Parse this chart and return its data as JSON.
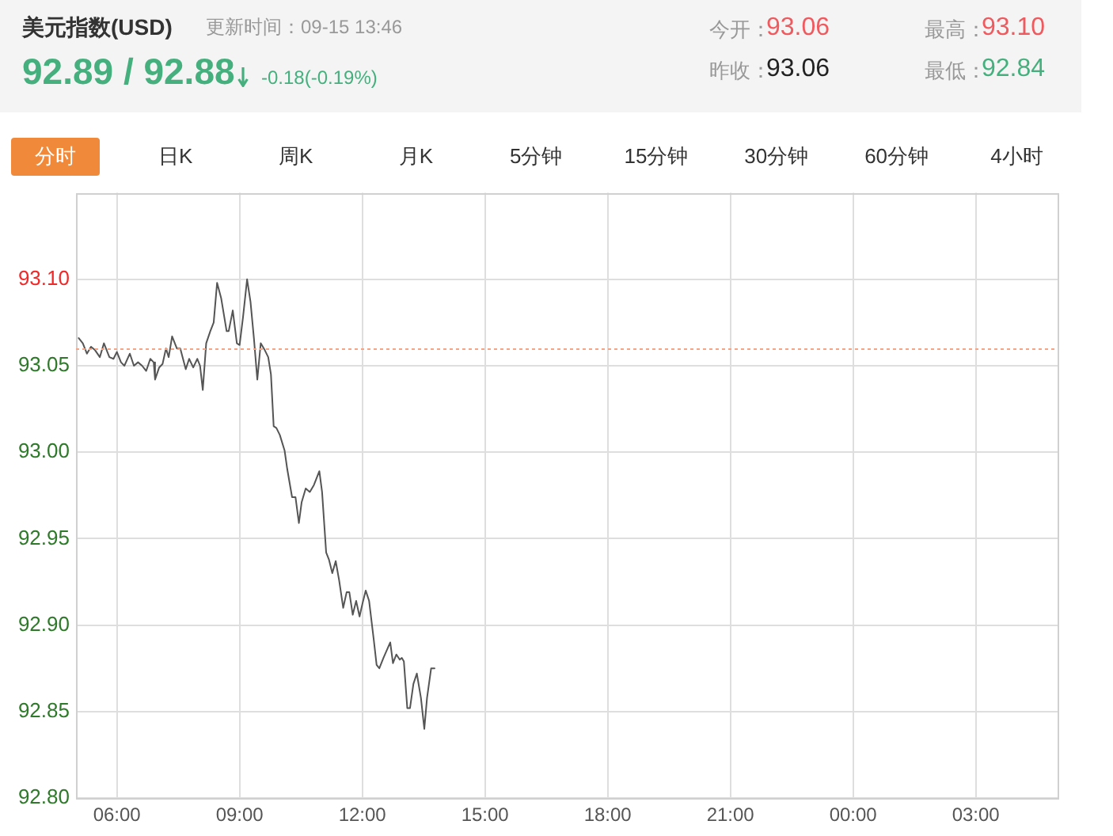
{
  "chart_data": {
    "type": "line",
    "title": "美元指数(USD)",
    "subtitle": "更新时间：09-15 13:46",
    "annotations": [
      "92.89 / 92.88",
      "-0.18(-0.19%)",
      "今开：",
      "93.06",
      "最高：",
      "93.10",
      "昨收：",
      "93.06",
      "最低：",
      "92.84",
      "分时",
      "日K",
      "周K",
      "月K",
      "5分钟",
      "15分钟",
      "30分钟",
      "60分钟",
      "4小时"
    ],
    "x": [
      "--09-15T05:04",
      "--09-15T05:10",
      "--09-15T05:16",
      "--09-15T05:22",
      "--09-15T05:28",
      "--09-15T05:35",
      "--09-15T05:41",
      "--09-15T05:49",
      "--09-15T05:55",
      "--09-15T06:00",
      "--09-15T06:06",
      "--09-15T06:11",
      "--09-15T06:19",
      "--09-15T06:25",
      "--09-15T06:31",
      "--09-15T06:37",
      "--09-15T06:43",
      "--09-15T06:49",
      "--09-15T06:54",
      "--09-15T06:56",
      "--09-15T07:02",
      "--09-15T07:07",
      "--09-15T07:12",
      "--09-15T07:16",
      "--09-15T07:21",
      "--09-15T07:28",
      "--09-15T07:33",
      "--09-15T07:41",
      "--09-15T07:46",
      "--09-15T07:52",
      "--09-15T07:58",
      "--09-15T08:02",
      "--09-15T08:06",
      "--09-15T08:11",
      "--09-15T08:17",
      "--09-15T08:22",
      "--09-15T08:27",
      "--09-15T08:33",
      "--09-15T08:41",
      "--09-15T08:44",
      "--09-15T08:50",
      "--09-15T08:56",
      "--09-15T09:00",
      "--09-15T09:05",
      "--09-15T09:11",
      "--09-15T09:16",
      "--09-15T09:21",
      "--09-15T09:26",
      "--09-15T09:31",
      "--09-15T09:37",
      "--09-15T09:42",
      "--09-15T09:46",
      "--09-15T09:50",
      "--09-15T09:54",
      "--09-15T09:59",
      "--09-15T10:06",
      "--09-15T10:10",
      "--09-15T10:17",
      "--09-15T10:22",
      "--09-15T10:27",
      "--09-15T10:31",
      "--09-15T10:37",
      "--09-15T10:43",
      "--09-15T10:49",
      "--09-15T10:57",
      "--09-15T11:01",
      "--09-15T11:07",
      "--09-15T11:11",
      "--09-15T11:16",
      "--09-15T11:21",
      "--09-15T11:26",
      "--09-15T11:32",
      "--09-15T11:37",
      "--09-15T11:41",
      "--09-15T11:46",
      "--09-15T11:51",
      "--09-15T11:56",
      "--09-15T12:00",
      "--09-15T12:05",
      "--09-15T12:10",
      "--09-15T12:17",
      "--09-15T12:21",
      "--09-15T12:25",
      "--09-15T12:31",
      "--09-15T12:41",
      "--09-15T12:45",
      "--09-15T12:50",
      "--09-15T12:55",
      "--09-15T12:58",
      "--09-15T13:01",
      "--09-15T13:06",
      "--09-15T13:10",
      "--09-15T13:15",
      "--09-15T13:20",
      "--09-15T13:26",
      "--09-15T13:31",
      "--09-15T13:35",
      "--09-15T13:41",
      "--09-15T13:46"
    ],
    "series": [
      {
        "color": "#555555",
        "values": [
          93.066,
          93.063,
          93.057,
          93.061,
          93.059,
          93.055,
          93.063,
          93.055,
          93.054,
          93.058,
          93.052,
          93.05,
          93.057,
          93.05,
          93.052,
          93.05,
          93.047,
          93.054,
          93.052,
          93.042,
          93.049,
          93.051,
          93.06,
          93.055,
          93.067,
          93.06,
          93.06,
          93.048,
          93.054,
          93.049,
          93.054,
          93.05,
          93.036,
          93.063,
          93.07,
          93.075,
          93.098,
          93.089,
          93.07,
          93.07,
          93.082,
          93.063,
          93.062,
          93.078,
          93.1,
          93.087,
          93.066,
          93.042,
          93.063,
          93.059,
          93.055,
          93.045,
          93.015,
          93.014,
          93.01,
          93.001,
          92.99,
          92.974,
          92.974,
          92.959,
          92.971,
          92.979,
          92.977,
          92.981,
          92.989,
          92.977,
          92.942,
          92.938,
          92.93,
          92.937,
          92.926,
          92.91,
          92.919,
          92.919,
          92.906,
          92.914,
          92.905,
          92.912,
          92.92,
          92.914,
          92.891,
          92.877,
          92.875,
          92.881,
          92.89,
          92.878,
          92.883,
          92.88,
          92.881,
          92.879,
          92.852,
          92.852,
          92.866,
          92.872,
          92.858,
          92.84,
          92.858,
          92.875,
          92.875
        ]
      }
    ],
    "xlim": [
      "--09-15T05:00",
      "--09-16T05:00"
    ],
    "xticks": [
      {
        "value": "--09-15T06:00",
        "label": "06:00"
      },
      {
        "value": "--09-15T09:00",
        "label": "09:00"
      },
      {
        "value": "--09-15T12:00",
        "label": "12:00"
      },
      {
        "value": "--09-15T15:00",
        "label": "15:00"
      },
      {
        "value": "--09-15T18:00",
        "label": "18:00"
      },
      {
        "value": "--09-15T21:00",
        "label": "21:00"
      },
      {
        "value": "--09-16T00:00",
        "label": "00:00"
      },
      {
        "value": "--09-16T03:00",
        "label": "03:00"
      }
    ],
    "ylim": [
      92.8,
      93.15
    ],
    "yticks": [
      {
        "value": 92.8,
        "label": "92.80"
      },
      {
        "value": 92.85,
        "label": "92.85"
      },
      {
        "value": 92.9,
        "label": "92.90"
      },
      {
        "value": 92.95,
        "label": "92.95"
      },
      {
        "value": 93.0,
        "label": "93.00"
      },
      {
        "value": 93.05,
        "label": "93.05"
      },
      {
        "value": 93.1,
        "label": "93.10"
      }
    ],
    "grid": true,
    "ref_lines": [
      {
        "axis": "y",
        "value": 93.06,
        "color": "#f5a585",
        "line_style": "dotted"
      }
    ]
  }
}
